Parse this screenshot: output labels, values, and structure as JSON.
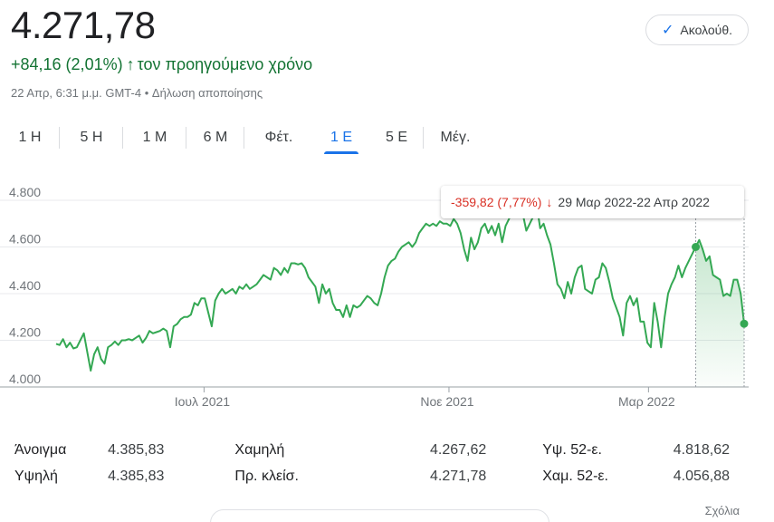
{
  "quote": {
    "price": "4.271,78",
    "change": "+84,16 (2,01%)",
    "change_arrow": "↑",
    "period": "τον προηγούμενο χρόνο",
    "datetime": "22 Απρ, 6:31 μ.μ. GMT-4",
    "separator": "•",
    "disclaimer": "Δήλωση αποποίησης"
  },
  "follow_button": {
    "icon": "check-icon",
    "label": "Ακολούθ."
  },
  "tabs": [
    {
      "label": "1 Η",
      "active": false
    },
    {
      "label": "5 Η",
      "active": false
    },
    {
      "label": "1 Μ",
      "active": false
    },
    {
      "label": "6 Μ",
      "active": false
    },
    {
      "label": "Φέτ.",
      "active": false
    },
    {
      "label": "1 Ε",
      "active": true
    },
    {
      "label": "5 Ε",
      "active": false
    },
    {
      "label": "Μέγ.",
      "active": false
    }
  ],
  "tooltip": {
    "change": "-359,82 (7,77%)",
    "arrow": "↓",
    "range": "29 Μαρ 2022-22 Απρ 2022"
  },
  "colors": {
    "line": "#34a853",
    "accent": "#1a73e8",
    "positive": "#137333",
    "negative": "#d93025"
  },
  "chart_data": {
    "type": "line",
    "ylim": [
      4000,
      4800
    ],
    "y_ticks": [
      "4.000",
      "4.200",
      "4.400",
      "4.600",
      "4.800"
    ],
    "y_tick_values": [
      4000,
      4200,
      4400,
      4600,
      4800
    ],
    "x_ticks": [
      "Ιουλ 2021",
      "Νοε 2021",
      "Μαρ 2022"
    ],
    "x_tick_positions": [
      0.215,
      0.571,
      0.861
    ],
    "grid": true,
    "highlight_range_start": 0.928,
    "series": [
      {
        "values": [
          4185,
          4180,
          4205,
          4170,
          4190,
          4165,
          4170,
          4200,
          4230,
          4150,
          4070,
          4140,
          4170,
          4120,
          4100,
          4170,
          4180,
          4195,
          4180,
          4200,
          4200,
          4205,
          4200,
          4210,
          4220,
          4190,
          4210,
          4240,
          4230,
          4235,
          4240,
          4250,
          4240,
          4170,
          4260,
          4270,
          4290,
          4300,
          4300,
          4310,
          4360,
          4350,
          4380,
          4380,
          4320,
          4260,
          4370,
          4400,
          4420,
          4400,
          4410,
          4420,
          4400,
          4430,
          4420,
          4440,
          4420,
          4430,
          4440,
          4460,
          4480,
          4470,
          4460,
          4510,
          4500,
          4480,
          4510,
          4490,
          4530,
          4530,
          4525,
          4530,
          4510,
          4470,
          4450,
          4430,
          4360,
          4440,
          4400,
          4420,
          4360,
          4330,
          4330,
          4300,
          4350,
          4300,
          4350,
          4340,
          4350,
          4370,
          4390,
          4380,
          4360,
          4350,
          4400,
          4470,
          4520,
          4540,
          4550,
          4580,
          4600,
          4610,
          4620,
          4600,
          4620,
          4660,
          4680,
          4700,
          4690,
          4700,
          4690,
          4710,
          4700,
          4700,
          4690,
          4720,
          4700,
          4660,
          4590,
          4540,
          4640,
          4590,
          4620,
          4680,
          4700,
          4660,
          4690,
          4650,
          4700,
          4620,
          4690,
          4720,
          4760,
          4800,
          4790,
          4740,
          4670,
          4700,
          4730,
          4780,
          4680,
          4700,
          4650,
          4610,
          4530,
          4440,
          4420,
          4380,
          4450,
          4400,
          4470,
          4510,
          4520,
          4420,
          4410,
          4400,
          4460,
          4470,
          4530,
          4510,
          4450,
          4380,
          4340,
          4300,
          4220,
          4360,
          4390,
          4350,
          4380,
          4280,
          4280,
          4190,
          4170,
          4360,
          4280,
          4170,
          4300,
          4400,
          4440,
          4470,
          4520,
          4470,
          4510,
          4540,
          4570,
          4600,
          4630,
          4590,
          4540,
          4560,
          4480,
          4470,
          4460,
          4390,
          4400,
          4390,
          4460,
          4460,
          4400,
          4271
        ]
      }
    ]
  },
  "stats": [
    [
      {
        "label": "Άνοιγμα",
        "value": "4.385,83"
      },
      {
        "label": "Χαμηλή",
        "value": "4.267,62"
      },
      {
        "label": "Υψ. 52-ε.",
        "value": "4.818,62"
      }
    ],
    [
      {
        "label": "Υψηλή",
        "value": "4.385,83"
      },
      {
        "label": "Πρ. κλείσ.",
        "value": "4.271,78"
      },
      {
        "label": "Χαμ. 52-ε.",
        "value": "4.056,88"
      }
    ]
  ],
  "footer": {
    "comments": "Σχόλια"
  }
}
